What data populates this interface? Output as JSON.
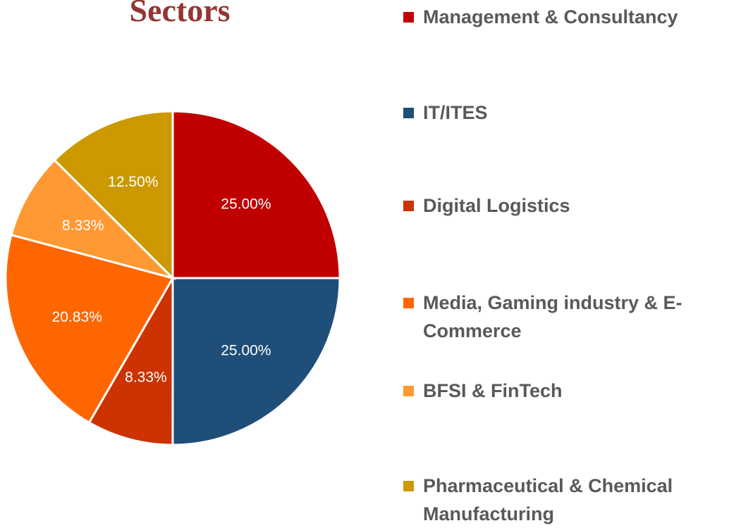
{
  "chart_data": {
    "type": "pie",
    "title": "Sectors",
    "categories": [
      "Management & Consultancy",
      "IT/ITES",
      "Digital Logistics",
      "Media, Gaming industry & E-Commerce",
      "BFSI & FinTech",
      "Pharmaceutical & Chemical Manufacturing"
    ],
    "values": [
      25,
      25,
      8.33,
      20.83,
      8.33,
      12.5
    ],
    "value_labels": [
      "25.00%",
      "25.00%",
      "8.33%",
      "20.83%",
      "8.33%",
      "12.50%"
    ],
    "colors": [
      "#c00000",
      "#1f4e79",
      "#cc3300",
      "#ff6600",
      "#ff9933",
      "#cc9900"
    ],
    "legend": "right"
  }
}
